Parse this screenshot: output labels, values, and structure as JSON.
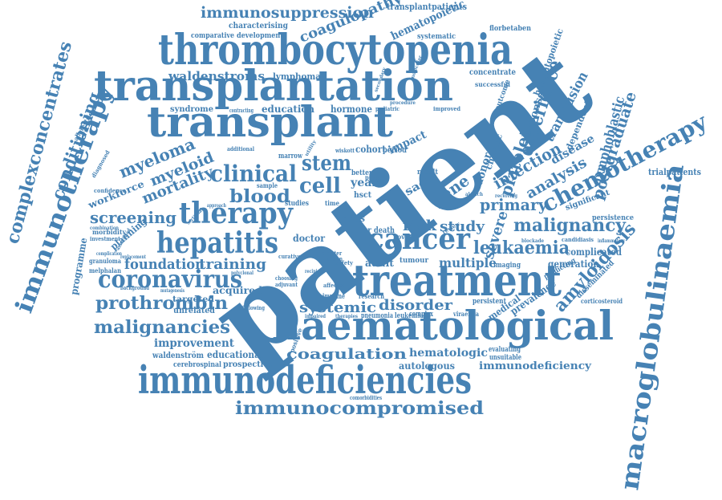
{
  "cloud": {
    "color": "#4682B4",
    "background": "#FFFFFF",
    "words": {
      "patient": "patient",
      "transplantation": "transplantation",
      "thrombocytopenia": "thrombocytopenia",
      "transplant": "transplant",
      "treatment": "treatment",
      "haematological": "haematological",
      "immunodeficiencies": "immunodeficiencies",
      "macroglobulinaemia": "macroglobulinaemia",
      "immunotherapy": "immunotherapy",
      "complexconcentrates": "complexconcentrates",
      "chemotherapy": "chemotherapy",
      "coronavirus": "coronavirus",
      "hepatitis": "hepatitis",
      "therapy": "therapy",
      "cancer": "cancer",
      "immunocompromised": "immunocompromised",
      "malignancies": "malignancies",
      "prothrombin": "prothrombin",
      "immunosuppression": "immunosuppression",
      "coagulopathy": "coagulopathy",
      "waldenstroms": "waldenstroms",
      "clinical": "clinical",
      "stem": "stem",
      "cell": "cell",
      "blood": "blood",
      "myeloma": "myeloma",
      "myeloid": "myeloid",
      "mortality": "mortality",
      "screening": "screening",
      "conditioning": "conditioning",
      "leukaemia": "leukaemia",
      "malignancy": "malignancy",
      "amyloidosis": "amyloidosis",
      "lymphoblastic": "lymphoblastic",
      "postgraduate": "postgraduate",
      "infection": "infection",
      "analysis": "analysis",
      "experience": "experience",
      "transfusion": "transfusion",
      "platelet": "platelet",
      "primary": "primary",
      "study": "study",
      "risk": "risk",
      "gene": "gene",
      "severe": "severe",
      "multiple": "multiple",
      "foundation": "foundation",
      "training": "training",
      "systemic": "systemic",
      "disorder": "disorder",
      "coagulation": "coagulation",
      "hematologic": "hematologic",
      "autologous": "autologous",
      "immunodeficiency": "immunodeficiency",
      "prevalence": "prevalence",
      "medical": "medical",
      "improvement": "improvement",
      "educational": "educational",
      "prospective": "prospective",
      "waldenstrom": "waldenström",
      "cerebrospinal": "cerebrospinal",
      "hematopoietic": "hematopoietic",
      "haematopoietic": "haematopoietic",
      "transplantpatients": "transplantpatients",
      "lymphoma": "lymphoma",
      "concentrate": "concentrate",
      "programme": "programme",
      "workforce": "workforce",
      "planning": "planning",
      "complicated": "complicated",
      "significant": "significant",
      "generation": "generation",
      "persistence": "persistence",
      "trialpatients": "trialpatients",
      "education": "education",
      "hormone": "hormone",
      "syndrome": "syndrome",
      "allorestricted": "allorestricted",
      "comparative": "comparative",
      "development": "development",
      "characterising": "characterising",
      "systematic": "systematic",
      "florbetaben": "florbetaben",
      "acquired": "acquired",
      "targeted": "targeted",
      "unrelated": "unrelated",
      "adult": "adult",
      "tumour": "tumour",
      "doctor": "doctor",
      "virus": "virus",
      "factor": "factor",
      "death": "death",
      "novel": "novel",
      "imaging": "imaging",
      "predicting": "predicting",
      "disseminated": "disseminated",
      "corticosteroid": "corticosteroid",
      "persistent": "persistent",
      "evaluating": "evaluating",
      "unsuitable": "unsuitable",
      "pneumonia": "pneumonia",
      "leukemia": "leukemia",
      "immune": "immune",
      "research": "research",
      "complex": "complex",
      "studies": "studies",
      "cohort": "cohort",
      "period": "period",
      "response": "response",
      "chronic": "chronic",
      "donor": "donor",
      "dependent": "dependent",
      "disease": "disease",
      "impact": "impact",
      "year": "year",
      "hsct": "hsct",
      "better": "better",
      "result": "result",
      "sample": "sample",
      "marrow": "marrow",
      "additional": "additional",
      "outcome": "outcome",
      "successful": "successful",
      "improved": "improved",
      "pediatric": "pediatric",
      "morbidity": "morbidity",
      "investment": "investment",
      "confidence": "confidence",
      "combination": "combination",
      "granuloma": "granuloma",
      "melphalan": "melphalan",
      "complication": "complication",
      "replacement": "replacement",
      "background": "background",
      "diagnosed": "diagnosed",
      "candidiasis": "candidiasis",
      "inflammatory": "inflammatory",
      "blockade": "blockade",
      "receiving": "receiving",
      "aldrich": "aldrich",
      "comorbidities": "comorbidities",
      "positive": "positive",
      "following": "following",
      "adjuvant": "adjuvant",
      "choosing": "choosing",
      "curative": "curative",
      "viraemia": "viraemia",
      "review": "review",
      "time": "time",
      "sactl": "sact",
      "wiskott": "wiskott",
      "phase": "phase",
      "molecular": "molecular",
      "secondary": "secondary",
      "procedure": "procedure",
      "therapies": "therapies",
      "impaired": "impaired",
      "affected": "affected",
      "safety": "safety",
      "greater": "greater",
      "london": "london",
      "recipient": "recipient",
      "sectional": "sectional",
      "approach": "approach",
      "associated": "associated",
      "mutagenesis": "mutagenesis",
      "polyclonal": "polyclonal",
      "contracting": "contracting",
      "utility": "utility"
    }
  }
}
